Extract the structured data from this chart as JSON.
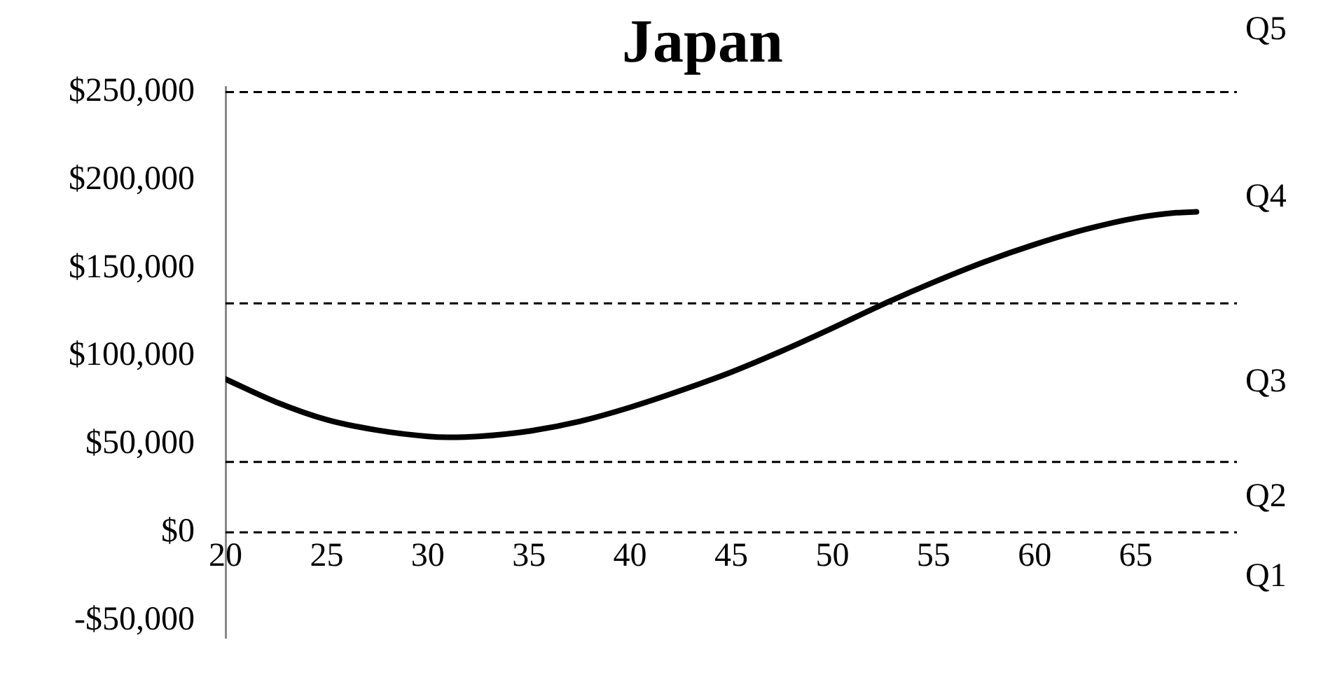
{
  "chart_data": {
    "type": "line",
    "title": "Japan",
    "x": [
      20,
      22.5,
      25,
      27.5,
      30,
      31,
      32.5,
      35,
      37.5,
      40,
      42.5,
      45,
      47.5,
      50,
      52.5,
      55,
      57.5,
      60,
      62.5,
      65,
      67,
      68
    ],
    "series": [
      {
        "color": "#000000",
        "values": [
          87000,
          74000,
          64000,
          58000,
          54500,
          54000,
          54500,
          57500,
          63000,
          71000,
          80500,
          91000,
          103000,
          116000,
          129500,
          142000,
          153500,
          163500,
          172000,
          178500,
          181500,
          182000
        ]
      }
    ],
    "xlim": [
      20,
      70
    ],
    "xticks": [
      20,
      25,
      30,
      35,
      40,
      45,
      50,
      55,
      60,
      65
    ],
    "ylim": [
      -60000,
      253000
    ],
    "yticks": [
      {
        "value": -50000,
        "label": "-$50,000"
      },
      {
        "value": 0,
        "label": "$0"
      },
      {
        "value": 50000,
        "label": "$50,000"
      },
      {
        "value": 100000,
        "label": "$100,000"
      },
      {
        "value": 150000,
        "label": "$150,000"
      },
      {
        "value": 200000,
        "label": "$200,000"
      },
      {
        "value": 250000,
        "label": "$250,000"
      }
    ],
    "ref_lines": [
      {
        "axis": "y",
        "value": 0,
        "label": "Q2",
        "line_style": "dashed"
      },
      {
        "axis": "y",
        "value": 40000,
        "label": "Q3",
        "line_style": "dashed"
      },
      {
        "axis": "y",
        "value": 130000,
        "label": "Q4",
        "line_style": "dashed"
      },
      {
        "axis": "y",
        "value": 250000,
        "label": "Q5",
        "line_style": "dashed"
      }
    ],
    "annotations": [
      "Q1"
    ],
    "grid": false,
    "legend": false,
    "marker": "none",
    "line_style": "solid"
  }
}
